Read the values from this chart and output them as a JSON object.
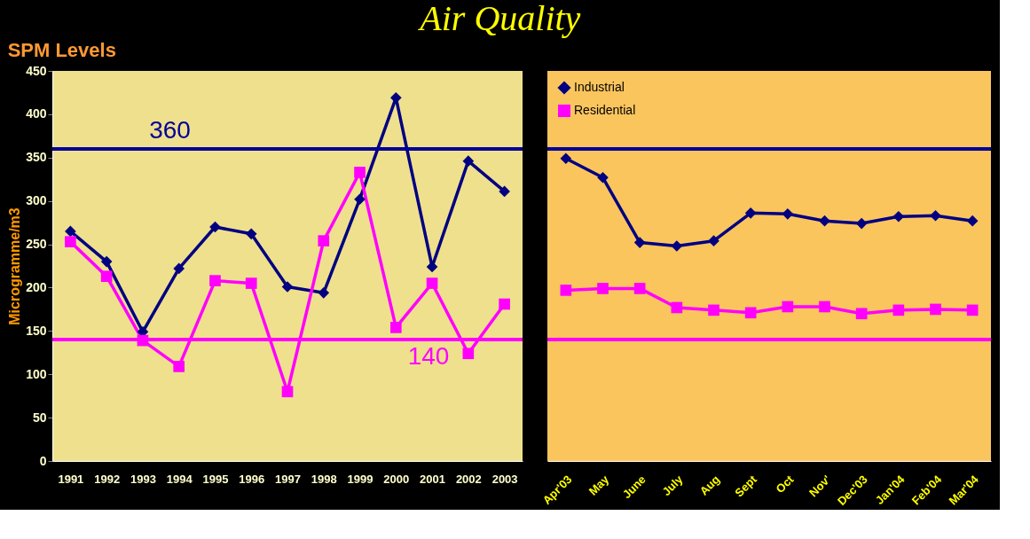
{
  "chart_data": [
    {
      "type": "line",
      "title": "Air Quality",
      "subtitle": "SPM Levels",
      "ylabel": "Microgramme/m3",
      "categories": [
        "1991",
        "1992",
        "1993",
        "1994",
        "1995",
        "1996",
        "1997",
        "1998",
        "1999",
        "2000",
        "2001",
        "2002",
        "2003"
      ],
      "series": [
        {
          "color": "#000080",
          "marker": "diamond",
          "values": [
            265,
            230,
            149,
            222,
            270,
            262,
            201,
            194,
            302,
            419,
            224,
            346,
            311
          ]
        },
        {
          "color": "#ff00ff",
          "marker": "square",
          "values": [
            253,
            213,
            139,
            109,
            208,
            205,
            80,
            254,
            333,
            154,
            205,
            124,
            181
          ]
        }
      ],
      "ylim": [
        0,
        450
      ],
      "yticks": [
        0,
        50,
        100,
        150,
        200,
        250,
        300,
        350,
        400,
        450
      ],
      "ref_lines": [
        {
          "axis": "y",
          "value": 360,
          "label": "360",
          "color": "#000099"
        },
        {
          "axis": "y",
          "value": 140,
          "label": "140",
          "color": "#ff00ff"
        }
      ],
      "grid": false,
      "legend": false,
      "line_style": "solid"
    },
    {
      "type": "line",
      "categories": [
        "Apr'03",
        "May",
        "June",
        "July",
        "Aug",
        "Sept",
        "Oct",
        "Nov'",
        "Dec'03",
        "Jan'04",
        "Feb'04",
        "Mar'04"
      ],
      "series": [
        {
          "name": "Industrial",
          "color": "#000080",
          "marker": "diamond",
          "values": [
            349,
            327,
            252,
            248,
            254,
            286,
            285,
            277,
            274,
            282,
            283,
            277
          ]
        },
        {
          "name": "Residential",
          "color": "#ff00ff",
          "marker": "square",
          "values": [
            197,
            199,
            199,
            177,
            174,
            171,
            178,
            178,
            170,
            174,
            175,
            174
          ]
        }
      ],
      "ylim": [
        0,
        450
      ],
      "yticks": [
        0,
        50,
        100,
        150,
        200,
        250,
        300,
        350,
        400,
        450
      ],
      "tick_labels": "x",
      "ref_lines": [
        {
          "axis": "y",
          "value": 360,
          "color": "#000099"
        },
        {
          "axis": "y",
          "value": 140,
          "color": "#ff00ff"
        }
      ],
      "grid": false,
      "legend": "top left",
      "line_style": "solid"
    }
  ]
}
